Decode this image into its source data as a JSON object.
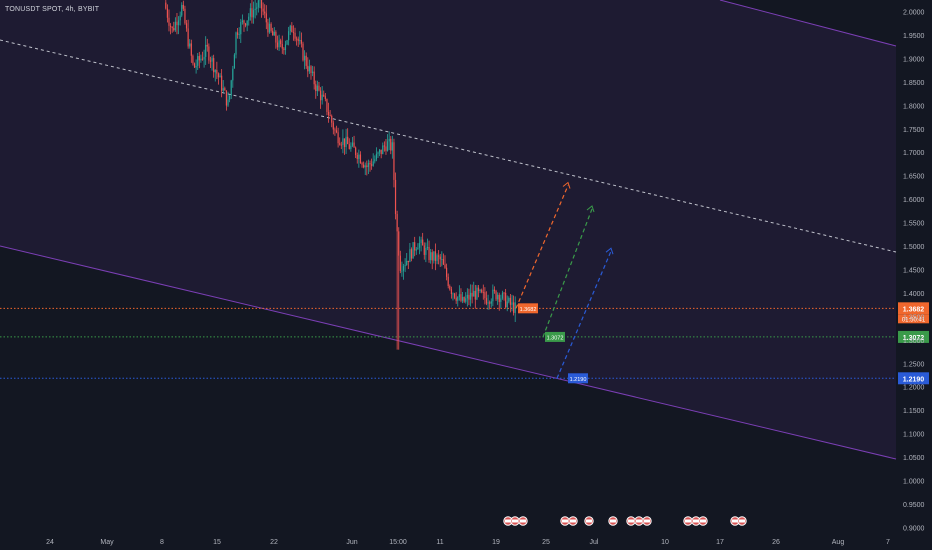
{
  "header": {
    "title": "TONUSDT SPOT, 4h, BYBIT"
  },
  "colors": {
    "background": "#131722",
    "channel_fill": "#1e1b32",
    "channel_line": "#7b3fb5",
    "up_candle": "#26a69a",
    "down_candle": "#ef5350",
    "grid_text": "#b2b5be",
    "midline": "#d1d4dc"
  },
  "chart_data": {
    "type": "candlestick",
    "symbol": "TONUSDT SPOT",
    "interval": "4h",
    "exchange": "BYBIT",
    "y_axis": {
      "ylim": [
        0.895,
        2.025
      ],
      "ticks": [
        "2.0000",
        "1.9500",
        "1.9000",
        "1.8500",
        "1.8000",
        "1.7500",
        "1.7000",
        "1.6500",
        "1.6000",
        "1.5500",
        "1.5000",
        "1.4500",
        "1.4000",
        "1.3500",
        "1.3000",
        "1.2500",
        "1.2000",
        "1.1500",
        "1.1000",
        "1.0500",
        "1.0000",
        "0.9500",
        "0.9000"
      ]
    },
    "x_axis": {
      "ticks": [
        "24",
        "May",
        "8",
        "15",
        "22",
        "Jun",
        "15:00",
        "11",
        "19",
        "25",
        "Jul",
        "10",
        "17",
        "26",
        "Aug",
        "7"
      ]
    },
    "price_path": [
      [
        0.0,
        2.02
      ],
      [
        0.4,
        1.96
      ],
      [
        0.9,
        2.01
      ],
      [
        1.5,
        1.88
      ],
      [
        2.2,
        1.92
      ],
      [
        2.8,
        1.86
      ],
      [
        3.3,
        1.8
      ],
      [
        3.7,
        1.96
      ],
      [
        4.3,
        1.99
      ],
      [
        4.9,
        2.02
      ],
      [
        5.4,
        1.96
      ],
      [
        6.0,
        1.92
      ],
      [
        6.6,
        1.97
      ],
      [
        7.2,
        1.9
      ],
      [
        7.8,
        1.84
      ],
      [
        8.3,
        1.8
      ],
      [
        8.8,
        1.74
      ],
      [
        9.3,
        1.72
      ],
      [
        9.9,
        1.7
      ],
      [
        10.4,
        1.67
      ],
      [
        10.9,
        1.69
      ],
      [
        11.4,
        1.72
      ],
      [
        11.7,
        1.71
      ],
      [
        11.9,
        1.55
      ],
      [
        12.1,
        1.46
      ],
      [
        12.4,
        1.47
      ],
      [
        13.0,
        1.51
      ],
      [
        13.6,
        1.48
      ],
      [
        14.2,
        1.47
      ],
      [
        14.7,
        1.41
      ],
      [
        15.3,
        1.38
      ],
      [
        15.9,
        1.4
      ],
      [
        16.5,
        1.39
      ],
      [
        17.1,
        1.4
      ],
      [
        17.6,
        1.38
      ],
      [
        18.0,
        1.368
      ]
    ],
    "last_price": {
      "value": "1.3682",
      "countdown": "01:50:41",
      "color": "#f0672d"
    },
    "horizontal_levels": [
      {
        "value": 1.3682,
        "label": "1.3682",
        "color": "#f0672d"
      },
      {
        "value": 1.3072,
        "label": "1.3072",
        "color": "#3a9a4a"
      },
      {
        "value": 1.219,
        "label": "1.2190",
        "color": "#2a5bd7"
      }
    ],
    "projections": [
      {
        "color": "#f0672d",
        "from_level": 1.3682,
        "to_level": 1.63,
        "box_label": "1.3682"
      },
      {
        "color": "#3a9a4a",
        "from_level": 1.3072,
        "to_level": 1.58,
        "box_label": "1.3072"
      },
      {
        "color": "#2a5bd7",
        "from_level": 1.219,
        "to_level": 1.49,
        "box_label": "1.2190"
      }
    ],
    "grid": false,
    "legend": "none"
  }
}
